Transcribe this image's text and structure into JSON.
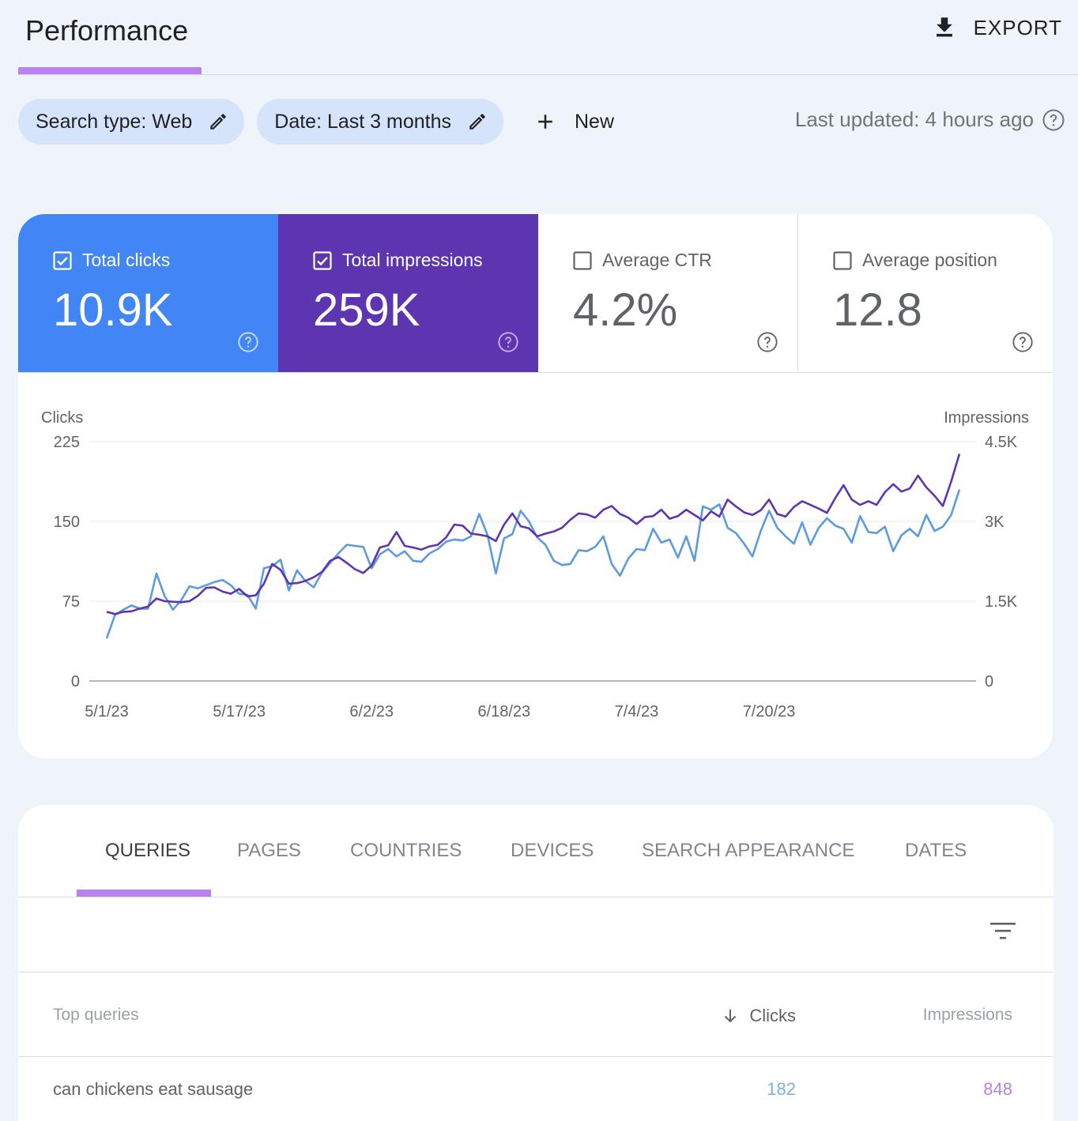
{
  "header": {
    "title": "Performance",
    "export_label": "EXPORT"
  },
  "filters": {
    "search_type": "Search type: Web",
    "date": "Date: Last 3 months",
    "new_label": "New",
    "last_updated": "Last updated: 4 hours ago"
  },
  "metrics": [
    {
      "label": "Total clicks",
      "value": "10.9K",
      "checked": true,
      "color": "#4285f4"
    },
    {
      "label": "Total impressions",
      "value": "259K",
      "checked": true,
      "color": "#5e35b1"
    },
    {
      "label": "Average CTR",
      "value": "4.2%",
      "checked": false
    },
    {
      "label": "Average position",
      "value": "12.8",
      "checked": false
    }
  ],
  "chart_data": {
    "type": "line",
    "ylabel_left": "Clicks",
    "ylabel_right": "Impressions",
    "y_left_ticks": [
      "0",
      "75",
      "150",
      "225"
    ],
    "y_right_ticks": [
      "0",
      "1.5K",
      "3K",
      "4.5K"
    ],
    "ylim_left": [
      0,
      225
    ],
    "ylim_right": [
      0,
      4500
    ],
    "x_ticks": [
      "5/1/23",
      "5/17/23",
      "6/2/23",
      "6/18/23",
      "7/4/23",
      "7/20/23"
    ],
    "grid": true,
    "series": [
      {
        "name": "Clicks",
        "axis": "left",
        "color": "#5b9bde",
        "values": [
          40,
          62,
          67,
          71,
          68,
          68,
          101,
          80,
          67,
          76,
          89,
          87,
          90,
          93,
          95,
          90,
          82,
          81,
          68,
          106,
          108,
          114,
          85,
          104,
          94,
          88,
          102,
          111,
          120,
          128,
          127,
          126,
          106,
          119,
          124,
          117,
          122,
          113,
          112,
          120,
          124,
          131,
          133,
          132,
          136,
          157,
          137,
          101,
          134,
          138,
          160,
          150,
          135,
          128,
          113,
          109,
          110,
          123,
          122,
          126,
          136,
          110,
          99,
          115,
          124,
          123,
          143,
          130,
          133,
          116,
          136,
          113,
          164,
          161,
          166,
          144,
          139,
          129,
          117,
          141,
          160,
          144,
          136,
          129,
          149,
          128,
          144,
          153,
          146,
          143,
          130,
          155,
          140,
          139,
          145,
          122,
          137,
          143,
          136,
          156,
          141,
          145,
          156,
          180
        ]
      },
      {
        "name": "Impressions",
        "axis": "right",
        "color": "#5e35b1",
        "values": [
          1300,
          1260,
          1300,
          1310,
          1360,
          1400,
          1550,
          1500,
          1490,
          1480,
          1500,
          1600,
          1750,
          1760,
          1680,
          1640,
          1730,
          1590,
          1610,
          1830,
          2200,
          2090,
          1830,
          1840,
          1880,
          1950,
          2050,
          2260,
          2330,
          2220,
          2100,
          2030,
          2170,
          2510,
          2550,
          2800,
          2540,
          2510,
          2470,
          2530,
          2560,
          2700,
          2940,
          2920,
          2770,
          2750,
          2720,
          2630,
          2940,
          3150,
          2910,
          2870,
          2720,
          2770,
          2810,
          2880,
          3030,
          3150,
          3130,
          3070,
          3220,
          3290,
          3140,
          3070,
          2950,
          3080,
          3100,
          3220,
          3050,
          3100,
          3220,
          3120,
          3020,
          3190,
          3090,
          3410,
          3280,
          3170,
          3120,
          3210,
          3410,
          3140,
          3090,
          3270,
          3380,
          3310,
          3240,
          3160,
          3440,
          3680,
          3410,
          3310,
          3380,
          3310,
          3550,
          3700,
          3560,
          3620,
          3860,
          3640,
          3480,
          3290,
          3750,
          4270
        ]
      }
    ]
  },
  "tabs": [
    "QUERIES",
    "PAGES",
    "COUNTRIES",
    "DEVICES",
    "SEARCH APPEARANCE",
    "DATES"
  ],
  "table": {
    "col_query": "Top queries",
    "col_clicks": "Clicks",
    "col_impressions": "Impressions",
    "rows": [
      {
        "query": "can chickens eat sausage",
        "clicks": "182",
        "impressions": "848"
      }
    ]
  }
}
